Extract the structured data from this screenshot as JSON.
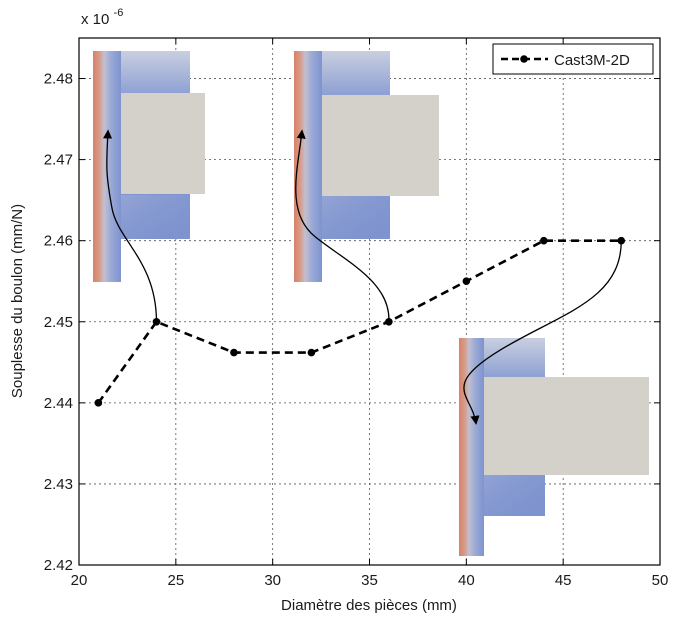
{
  "chart_data": {
    "type": "line",
    "xlabel": "Diamètre des pièces (mm)",
    "ylabel": "Souplesse du boulon (mm/N)",
    "y_multiplier_label": "x 10",
    "y_multiplier_exponent": "-6",
    "xlim": [
      20,
      50
    ],
    "ylim": [
      2.42,
      2.485
    ],
    "x_ticks": [
      20,
      25,
      30,
      35,
      40,
      45,
      50
    ],
    "x_tick_labels": [
      "20",
      "25",
      "30",
      "35",
      "40",
      "45",
      "50"
    ],
    "y_ticks": [
      2.42,
      2.43,
      2.44,
      2.45,
      2.46,
      2.47,
      2.48
    ],
    "y_tick_labels": [
      "2.42",
      "2.43",
      "2.44",
      "2.45",
      "2.46",
      "2.47",
      "2.48"
    ],
    "grid": true,
    "legend_position": "top-right",
    "series": [
      {
        "name": "Cast3M-2D",
        "color": "#000000",
        "line_style": "dashed",
        "marker": "circle",
        "x": [
          21,
          24,
          28,
          32,
          36,
          40,
          44,
          48
        ],
        "y": [
          2.44,
          2.45,
          2.4462,
          2.4462,
          2.45,
          2.455,
          2.46,
          2.46
        ]
      }
    ],
    "insets": [
      {
        "depicts": "fem-stress-field",
        "points_to_x": 24
      },
      {
        "depicts": "fem-stress-field",
        "points_to_x": 36
      },
      {
        "depicts": "fem-stress-field",
        "points_to_x": 48
      }
    ],
    "colors": {
      "field_blue": "#7e93cf",
      "field_light": "#c4cbe0",
      "field_red": "#d8826a",
      "bolt_gray": "#d3d1c9"
    }
  }
}
